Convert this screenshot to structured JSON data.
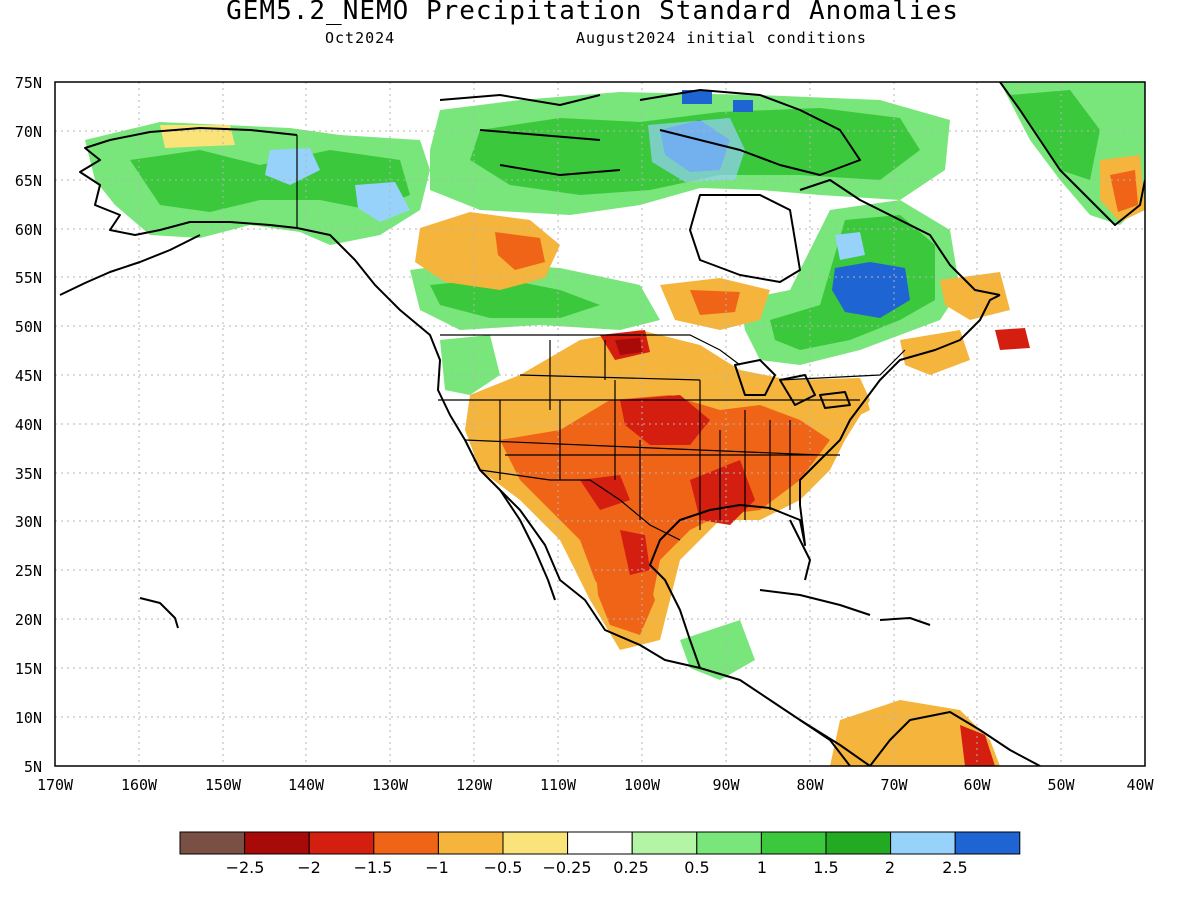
{
  "title": "GEM5.2_NEMO Precipitation Standard Anomalies",
  "subtitle_left": "Oct2024",
  "subtitle_right": "August2024 initial conditions",
  "map": {
    "region": "North America",
    "lon_range": [
      -170,
      -40
    ],
    "lat_range": [
      5,
      75
    ],
    "grid": true,
    "lat_ticks": [
      "5N",
      "10N",
      "15N",
      "20N",
      "25N",
      "30N",
      "35N",
      "40N",
      "45N",
      "50N",
      "55N",
      "60N",
      "65N",
      "70N",
      "75N"
    ],
    "lon_ticks": [
      "170W",
      "160W",
      "150W",
      "140W",
      "130W",
      "120W",
      "110W",
      "100W",
      "90W",
      "80W",
      "70W",
      "60W",
      "50W",
      "40W"
    ]
  },
  "colorbar": {
    "colors": [
      "#7a5045",
      "#a80a0a",
      "#d41e10",
      "#f06418",
      "#f5b43c",
      "#fae479",
      "#ffffff",
      "#b4f5a5",
      "#78e67a",
      "#3cc83c",
      "#23aa23",
      "#96d2fa",
      "#1e64d2"
    ],
    "labels": [
      "−2.5",
      "−2",
      "−1.5",
      "−1",
      "−0.5",
      "−0.25",
      "0.25",
      "0.5",
      "1",
      "1.5",
      "2",
      "2.5"
    ]
  },
  "legend_colors": {
    "dry_strong": "#d41e10",
    "dry": "#f06418",
    "dry_weak": "#f5b43c",
    "near_normal": "#ffffff",
    "wet_weak": "#78e67a",
    "wet": "#3cc83c",
    "wet_strong": "#1e64d2"
  }
}
